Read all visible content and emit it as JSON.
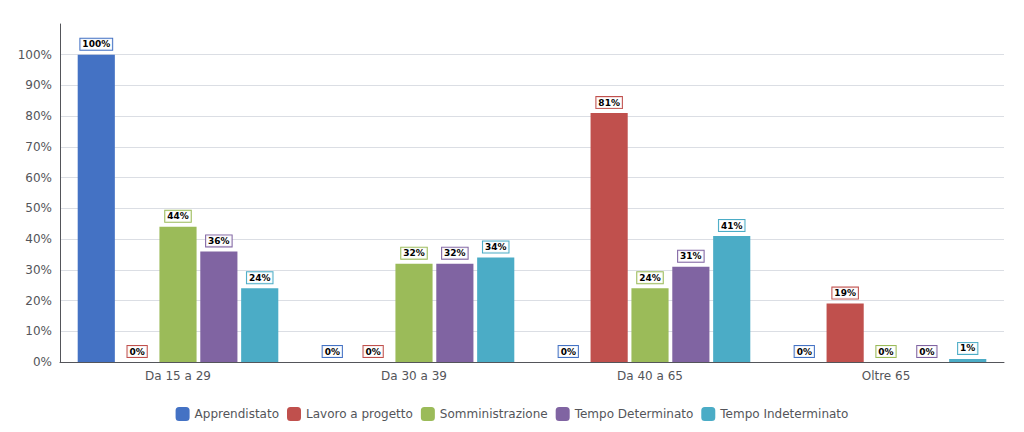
{
  "chart_data": {
    "type": "bar",
    "categories": [
      "Da 15 a 29",
      "Da 30 a 39",
      "Da 40 a 65",
      "Oltre 65"
    ],
    "series": [
      {
        "name": "Apprendistato",
        "color": "#4472C4",
        "values": [
          100,
          0,
          0,
          0
        ],
        "value_labels": [
          "100%",
          "0%",
          "0%",
          "0%"
        ]
      },
      {
        "name": "Lavoro a progetto",
        "color": "#C0504D",
        "values": [
          0,
          0,
          81,
          19
        ],
        "value_labels": [
          "0%",
          "0%",
          "81%",
          "19%"
        ]
      },
      {
        "name": "Somministrazione",
        "color": "#9BBB59",
        "values": [
          44,
          32,
          24,
          0
        ],
        "value_labels": [
          "44%",
          "32%",
          "24%",
          "0%"
        ]
      },
      {
        "name": "Tempo Determinato",
        "color": "#8064A2",
        "values": [
          36,
          32,
          31,
          0
        ],
        "value_labels": [
          "36%",
          "32%",
          "31%",
          "0%"
        ]
      },
      {
        "name": "Tempo Indeterminato",
        "color": "#4BACC6",
        "values": [
          24,
          34,
          41,
          1
        ],
        "value_labels": [
          "24%",
          "34%",
          "41%",
          "1%"
        ]
      }
    ],
    "ylim": [
      0,
      110
    ],
    "yticks": [
      {
        "value": 0,
        "label": "0%"
      },
      {
        "value": 10,
        "label": "10%"
      },
      {
        "value": 20,
        "label": "20%"
      },
      {
        "value": 30,
        "label": "30%"
      },
      {
        "value": 40,
        "label": "40%"
      },
      {
        "value": 50,
        "label": "50%"
      },
      {
        "value": 60,
        "label": "60%"
      },
      {
        "value": 70,
        "label": "70%"
      },
      {
        "value": 80,
        "label": "80%"
      },
      {
        "value": 90,
        "label": "90%"
      },
      {
        "value": 100,
        "label": "100%"
      }
    ],
    "grid": true,
    "legend": "bottom",
    "data_labels": true
  }
}
